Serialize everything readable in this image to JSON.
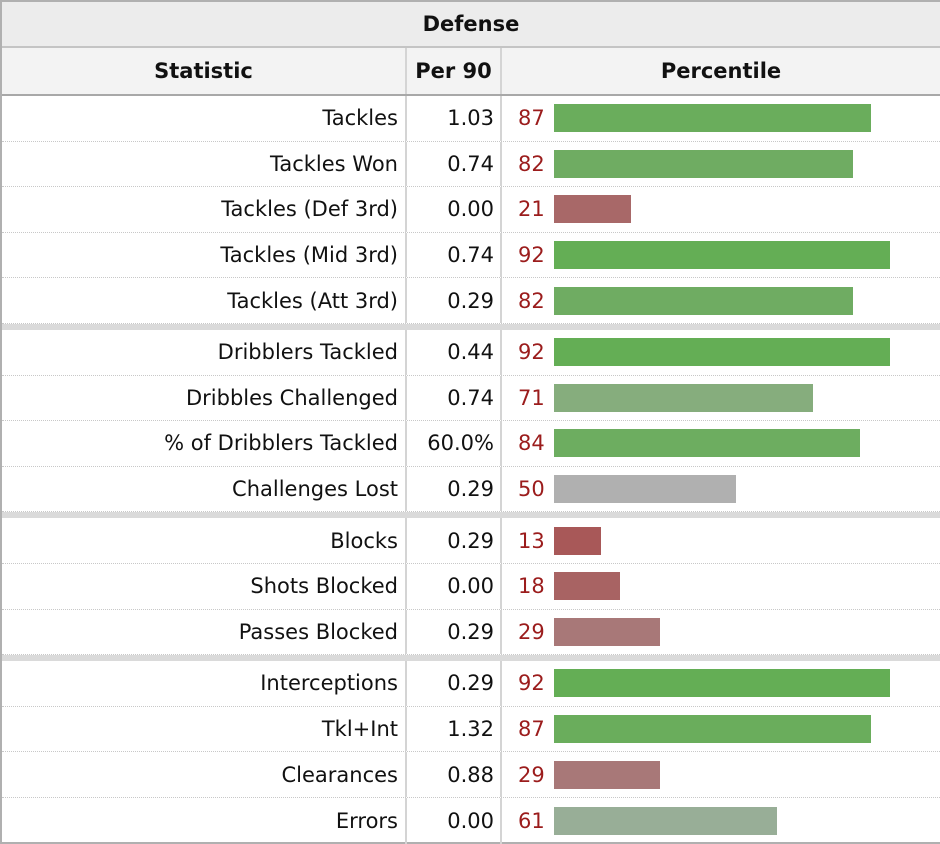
{
  "caption": "Defense",
  "headers": {
    "statistic": "Statistic",
    "per90": "Per 90",
    "percentile": "Percentile"
  },
  "bar_scale_max": 100,
  "groups": [
    [
      {
        "stat": "Tackles",
        "per90": "1.03",
        "percentile": 87,
        "color": "#6aad5c"
      },
      {
        "stat": "Tackles Won",
        "per90": "0.74",
        "percentile": 82,
        "color": "#6fac62"
      },
      {
        "stat": "Tackles (Def 3rd)",
        "per90": "0.00",
        "percentile": 21,
        "color": "#a86868"
      },
      {
        "stat": "Tackles (Mid 3rd)",
        "per90": "0.74",
        "percentile": 92,
        "color": "#64ae55"
      },
      {
        "stat": "Tackles (Att 3rd)",
        "per90": "0.29",
        "percentile": 82,
        "color": "#6fac62"
      }
    ],
    [
      {
        "stat": "Dribblers Tackled",
        "per90": "0.44",
        "percentile": 92,
        "color": "#64ae55"
      },
      {
        "stat": "Dribbles Challenged",
        "per90": "0.74",
        "percentile": 71,
        "color": "#86ad7d"
      },
      {
        "stat": "% of Dribblers Tackled",
        "per90": "60.0%",
        "percentile": 84,
        "color": "#6dad60"
      },
      {
        "stat": "Challenges Lost",
        "per90": "0.29",
        "percentile": 50,
        "color": "#b0b0b0"
      }
    ],
    [
      {
        "stat": "Blocks",
        "per90": "0.29",
        "percentile": 13,
        "color": "#a85858"
      },
      {
        "stat": "Shots Blocked",
        "per90": "0.00",
        "percentile": 18,
        "color": "#a86363"
      },
      {
        "stat": "Passes Blocked",
        "per90": "0.29",
        "percentile": 29,
        "color": "#a87878"
      }
    ],
    [
      {
        "stat": "Interceptions",
        "per90": "0.29",
        "percentile": 92,
        "color": "#64ae55"
      },
      {
        "stat": "Tkl+Int",
        "per90": "1.32",
        "percentile": 87,
        "color": "#6aad5c"
      },
      {
        "stat": "Clearances",
        "per90": "0.88",
        "percentile": 29,
        "color": "#a87878"
      },
      {
        "stat": "Errors",
        "per90": "0.00",
        "percentile": 61,
        "color": "#98ae97"
      }
    ]
  ]
}
